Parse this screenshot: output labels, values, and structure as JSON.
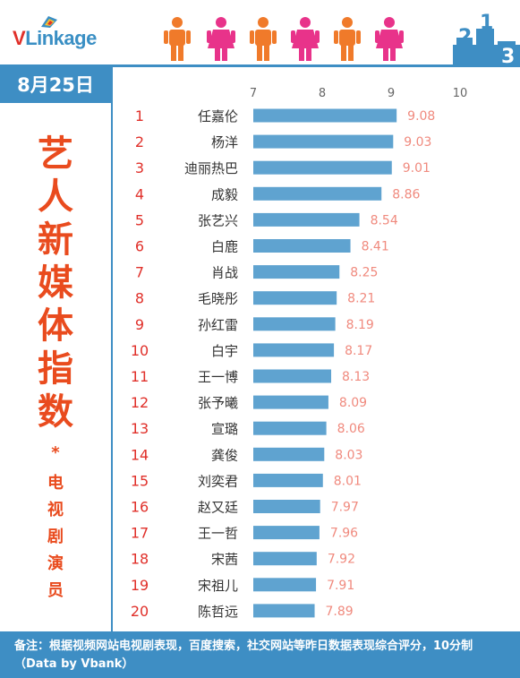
{
  "header": {
    "logo_text": "VLinkage",
    "logo_v": "V",
    "logo_rest": "Linkage",
    "podium_numbers": [
      "2",
      "1",
      "3"
    ]
  },
  "date": "8月25日",
  "title_chars": [
    "艺",
    "人",
    "新",
    "媒",
    "体",
    "指",
    "数"
  ],
  "star": "*",
  "subtitle_chars": [
    "电",
    "视",
    "剧",
    "演",
    "员"
  ],
  "footer": "备注：根据视频网站电视剧表现，百度搜索，社交网站等昨日数据表现综合评分，10分制（Data by Vbank）",
  "colors": {
    "accent": "#3e8ec4",
    "bar": "#5fa3d0",
    "title": "#e94b1e",
    "rank": "#e0302a",
    "value": "#f08a7e",
    "person_orange": "#f07a2a",
    "person_pink": "#e8338a"
  },
  "chart_data": {
    "type": "bar",
    "orientation": "horizontal",
    "xlim": [
      7,
      10
    ],
    "xticks": [
      "7",
      "8",
      "9",
      "10"
    ],
    "ranks": [
      "1",
      "2",
      "3",
      "4",
      "5",
      "6",
      "7",
      "8",
      "9",
      "10",
      "11",
      "12",
      "13",
      "14",
      "15",
      "16",
      "17",
      "18",
      "19",
      "20"
    ],
    "categories": [
      "任嘉伦",
      "杨洋",
      "迪丽热巴",
      "成毅",
      "张艺兴",
      "白鹿",
      "肖战",
      "毛晓彤",
      "孙红雷",
      "白宇",
      "王一博",
      "张予曦",
      "宣璐",
      "龚俊",
      "刘奕君",
      "赵又廷",
      "王一哲",
      "宋茜",
      "宋祖儿",
      "陈哲远"
    ],
    "values": [
      9.08,
      9.03,
      9.01,
      8.86,
      8.54,
      8.41,
      8.25,
      8.21,
      8.19,
      8.17,
      8.13,
      8.09,
      8.06,
      8.03,
      8.01,
      7.97,
      7.96,
      7.92,
      7.91,
      7.89
    ],
    "value_labels": [
      "9.08",
      "9.03",
      "9.01",
      "8.86",
      "8.54",
      "8.41",
      "8.25",
      "8.21",
      "8.19",
      "8.17",
      "8.13",
      "8.09",
      "8.06",
      "8.03",
      "8.01",
      "7.97",
      "7.96",
      "7.92",
      "7.91",
      "7.89"
    ]
  }
}
